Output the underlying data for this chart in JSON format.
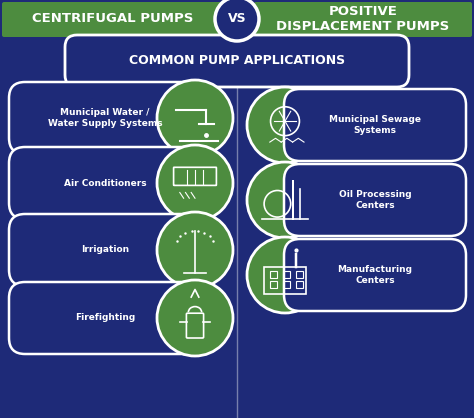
{
  "bg_color": "#1e2a78",
  "header_green": "#4d8c3f",
  "circle_green": "#4d8c3f",
  "white": "#ffffff",
  "text_dark": "#1e2a78",
  "title_left": "CENTRIFUGAL PUMPS",
  "vs_text": "VS",
  "title_right": "POSITIVE\nDISPLACEMENT PUMPS",
  "subtitle": "COMMON PUMP APPLICATIONS",
  "left_items": [
    "Municipal Water /\nWater Supply Systems",
    "Air Conditioners",
    "Irrigation",
    "Firefighting"
  ],
  "right_items": [
    "Municipal Sewage\nSystems",
    "Oil Processing\nCenters",
    "Manufacturing\nCenters"
  ],
  "figsize": [
    4.74,
    4.18
  ],
  "dpi": 100
}
